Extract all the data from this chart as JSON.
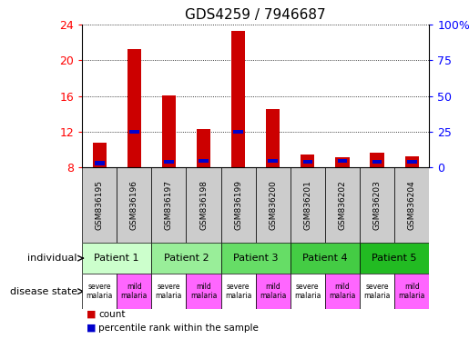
{
  "title": "GDS4259 / 7946687",
  "samples": [
    "GSM836195",
    "GSM836196",
    "GSM836197",
    "GSM836198",
    "GSM836199",
    "GSM836200",
    "GSM836201",
    "GSM836202",
    "GSM836203",
    "GSM836204"
  ],
  "count_values": [
    10.8,
    21.2,
    16.1,
    12.3,
    23.3,
    14.5,
    9.5,
    9.2,
    9.7,
    9.3
  ],
  "percentile_values": [
    3.0,
    25.0,
    4.0,
    4.5,
    25.0,
    4.5,
    4.0,
    4.5,
    4.0,
    4.0
  ],
  "ymin": 8,
  "ymax": 24,
  "y_ticks": [
    8,
    12,
    16,
    20,
    24
  ],
  "y2_ticks": [
    0,
    25,
    50,
    75,
    100
  ],
  "y2_tick_labels": [
    "0",
    "25",
    "50",
    "75",
    "100%"
  ],
  "red_color": "#cc0000",
  "blue_color": "#0000cc",
  "patients": [
    "Patient 1",
    "Patient 2",
    "Patient 3",
    "Patient 4",
    "Patient 5"
  ],
  "patient_colors": [
    "#ccffcc",
    "#99ee99",
    "#66dd66",
    "#44cc44",
    "#22bb22"
  ],
  "disease_colors_severe": "#ffffff",
  "disease_colors_mild": "#ff66ff",
  "sample_label_bg": "#cccccc",
  "title_fontsize": 11,
  "tick_fontsize": 9,
  "bar_width": 0.4
}
